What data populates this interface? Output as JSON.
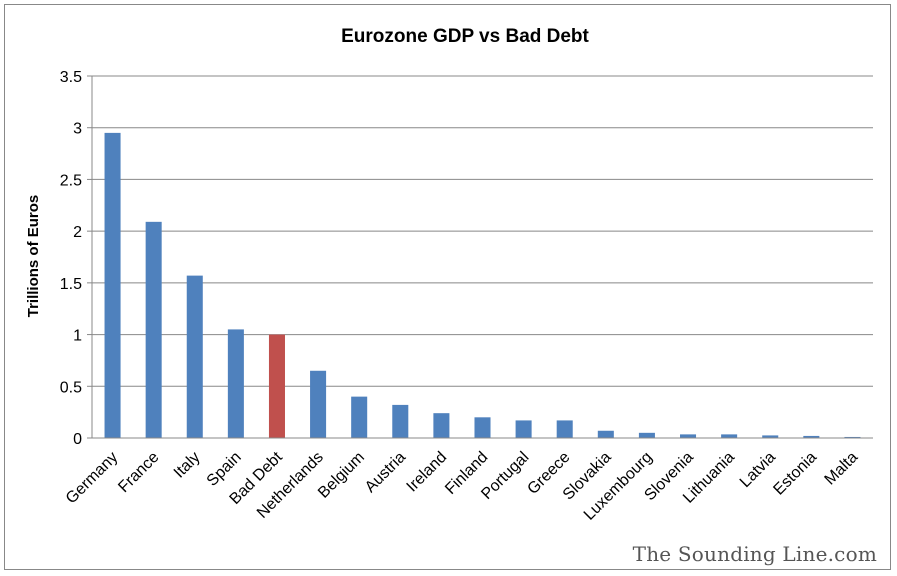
{
  "chart_data": {
    "type": "bar",
    "title": "Eurozone GDP vs Bad Debt",
    "xlabel": "",
    "ylabel": "Trillions of Euros",
    "ylim": [
      0,
      3.5
    ],
    "yticks": [
      0,
      0.5,
      1,
      1.5,
      2,
      2.5,
      3,
      3.5
    ],
    "ytick_labels": [
      "0",
      "0.5",
      "1",
      "1.5",
      "2",
      "2.5",
      "3",
      "3.5"
    ],
    "grid": true,
    "legend": "none",
    "categories": [
      "Germany",
      "France",
      "Italy",
      "Spain",
      "Bad Debt",
      "Netherlands",
      "Belgium",
      "Austria",
      "Ireland",
      "Finland",
      "Portugal",
      "Greece",
      "Slovakia",
      "Luxembourg",
      "Slovenia",
      "Lithuania",
      "Latvia",
      "Estonia",
      "Malta"
    ],
    "values": [
      2.95,
      2.09,
      1.57,
      1.05,
      1.0,
      0.65,
      0.4,
      0.32,
      0.24,
      0.2,
      0.17,
      0.17,
      0.07,
      0.05,
      0.035,
      0.035,
      0.025,
      0.02,
      0.01
    ],
    "colors": {
      "default": "#4f81bd",
      "highlight": "#c0504d",
      "gridline": "#888888",
      "axis": "#888888"
    },
    "highlight_category": "Bad Debt"
  },
  "watermark": "The Sounding Line.com"
}
